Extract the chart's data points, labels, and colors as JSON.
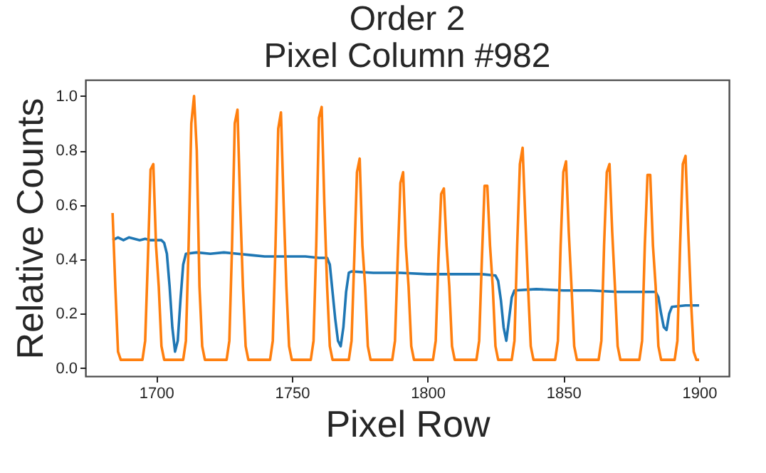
{
  "chart_data": {
    "type": "line",
    "title": [
      "Order 2",
      "Pixel Column #982"
    ],
    "xlabel": "Pixel Row",
    "ylabel": "Relative Counts",
    "xlim": [
      1674,
      1911
    ],
    "ylim": [
      -0.03,
      1.06
    ],
    "xticks": [
      1700,
      1750,
      1800,
      1850,
      1900
    ],
    "yticks": [
      {
        "value": 0,
        "label": "0.0"
      },
      0.2,
      0.4,
      0.6,
      0.8,
      {
        "value": 1,
        "label": "1.0"
      }
    ],
    "grid": false,
    "marker": "none",
    "line_style": "solid",
    "series": [
      {
        "color": "#1f77b4",
        "x": [
          1684,
          1686,
          1688,
          1690,
          1692,
          1694,
          1696,
          1698,
          1700,
          1702,
          1703,
          1704,
          1705,
          1706,
          1707,
          1708,
          1709,
          1710,
          1711,
          1715,
          1720,
          1725,
          1730,
          1735,
          1740,
          1745,
          1750,
          1755,
          1760,
          1763,
          1764,
          1765,
          1766,
          1767,
          1768,
          1769,
          1770,
          1771,
          1772,
          1780,
          1790,
          1800,
          1810,
          1820,
          1825,
          1826,
          1827,
          1828,
          1829,
          1830,
          1831,
          1832,
          1840,
          1850,
          1860,
          1870,
          1880,
          1884,
          1885,
          1886,
          1887,
          1888,
          1889,
          1890,
          1895,
          1900
        ],
        "values": [
          0.47,
          0.48,
          0.47,
          0.48,
          0.475,
          0.47,
          0.475,
          0.47,
          0.47,
          0.47,
          0.46,
          0.42,
          0.3,
          0.15,
          0.06,
          0.1,
          0.25,
          0.38,
          0.42,
          0.425,
          0.42,
          0.425,
          0.42,
          0.415,
          0.41,
          0.41,
          0.41,
          0.41,
          0.405,
          0.405,
          0.38,
          0.28,
          0.18,
          0.1,
          0.08,
          0.15,
          0.28,
          0.35,
          0.355,
          0.35,
          0.35,
          0.345,
          0.345,
          0.345,
          0.34,
          0.32,
          0.25,
          0.15,
          0.1,
          0.18,
          0.26,
          0.285,
          0.29,
          0.285,
          0.285,
          0.28,
          0.28,
          0.28,
          0.26,
          0.2,
          0.15,
          0.14,
          0.2,
          0.225,
          0.23,
          0.23
        ]
      },
      {
        "color": "#ff7f0e",
        "x": [
          1684,
          1685,
          1686,
          1687,
          1695,
          1696,
          1697,
          1698,
          1699,
          1700,
          1701,
          1702,
          1703,
          1710,
          1711,
          1712,
          1713,
          1714,
          1715,
          1716,
          1717,
          1718,
          1726,
          1727,
          1728,
          1729,
          1730,
          1731,
          1732,
          1733,
          1734,
          1742,
          1743,
          1744,
          1745,
          1746,
          1747,
          1748,
          1749,
          1750,
          1757,
          1758,
          1759,
          1760,
          1761,
          1762,
          1763,
          1764,
          1765,
          1771,
          1772,
          1773,
          1774,
          1775,
          1776,
          1777,
          1778,
          1779,
          1787,
          1788,
          1789,
          1790,
          1791,
          1792,
          1793,
          1794,
          1795,
          1802,
          1803,
          1804,
          1805,
          1806,
          1807,
          1808,
          1809,
          1810,
          1818,
          1819,
          1820,
          1821,
          1822,
          1823,
          1824,
          1825,
          1826,
          1831,
          1832,
          1833,
          1834,
          1835,
          1836,
          1837,
          1838,
          1839,
          1847,
          1848,
          1849,
          1850,
          1851,
          1852,
          1853,
          1854,
          1855,
          1863,
          1864,
          1865,
          1866,
          1867,
          1868,
          1869,
          1870,
          1871,
          1878,
          1879,
          1880,
          1881,
          1882,
          1883,
          1884,
          1885,
          1886,
          1891,
          1892,
          1893,
          1894,
          1895,
          1896,
          1897,
          1898,
          1899,
          1900
        ],
        "values": [
          0.57,
          0.3,
          0.06,
          0.03,
          0.03,
          0.1,
          0.4,
          0.73,
          0.75,
          0.45,
          0.3,
          0.08,
          0.03,
          0.03,
          0.1,
          0.45,
          0.9,
          1.0,
          0.8,
          0.3,
          0.08,
          0.03,
          0.03,
          0.1,
          0.45,
          0.9,
          0.95,
          0.6,
          0.3,
          0.08,
          0.03,
          0.03,
          0.1,
          0.45,
          0.88,
          0.94,
          0.6,
          0.3,
          0.08,
          0.03,
          0.03,
          0.1,
          0.45,
          0.92,
          0.96,
          0.6,
          0.3,
          0.08,
          0.03,
          0.03,
          0.1,
          0.4,
          0.72,
          0.77,
          0.45,
          0.3,
          0.08,
          0.03,
          0.03,
          0.1,
          0.4,
          0.68,
          0.72,
          0.45,
          0.3,
          0.08,
          0.03,
          0.03,
          0.1,
          0.4,
          0.64,
          0.66,
          0.45,
          0.3,
          0.08,
          0.03,
          0.03,
          0.1,
          0.4,
          0.67,
          0.67,
          0.45,
          0.3,
          0.08,
          0.03,
          0.03,
          0.1,
          0.45,
          0.75,
          0.81,
          0.55,
          0.3,
          0.08,
          0.03,
          0.03,
          0.1,
          0.45,
          0.72,
          0.76,
          0.5,
          0.3,
          0.08,
          0.03,
          0.03,
          0.1,
          0.45,
          0.72,
          0.75,
          0.5,
          0.3,
          0.08,
          0.03,
          0.03,
          0.1,
          0.45,
          0.71,
          0.71,
          0.45,
          0.3,
          0.08,
          0.03,
          0.03,
          0.1,
          0.45,
          0.75,
          0.78,
          0.5,
          0.25,
          0.06,
          0.03,
          0.03
        ]
      }
    ]
  }
}
